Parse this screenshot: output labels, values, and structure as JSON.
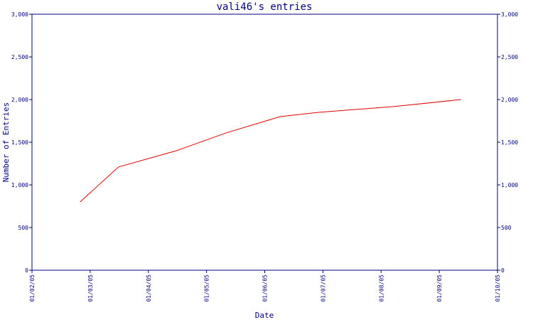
{
  "chart_data": {
    "type": "line",
    "title": "vali46's entries",
    "xlabel": "Date",
    "ylabel": "Number of Entries",
    "x_ticks": [
      "01/02/05",
      "01/03/05",
      "01/04/05",
      "01/05/05",
      "01/06/05",
      "01/07/05",
      "01/08/05",
      "01/09/05",
      "01/10/05"
    ],
    "y_ticks": [
      "0",
      "500",
      "1,000",
      "1,500",
      "2,000",
      "2,500",
      "3,000"
    ],
    "ylim": [
      0,
      3000
    ],
    "xlim": [
      "2005-02-01",
      "2005-10-01"
    ],
    "grid": false,
    "series": [
      {
        "color": "#e00000",
        "points": [
          {
            "x": "2005-02-26",
            "y": 800
          },
          {
            "x": "2005-03-18",
            "y": 1210
          },
          {
            "x": "2005-04-17",
            "y": 1400
          },
          {
            "x": "2005-05-13",
            "y": 1610
          },
          {
            "x": "2005-06-10",
            "y": 1800
          },
          {
            "x": "2005-06-30",
            "y": 1850
          },
          {
            "x": "2005-08-09",
            "y": 1920
          },
          {
            "x": "2005-09-12",
            "y": 2000
          }
        ]
      }
    ]
  }
}
